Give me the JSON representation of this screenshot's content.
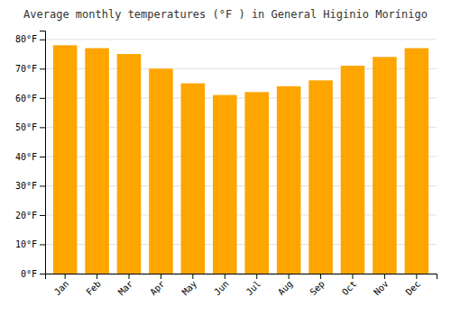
{
  "chart_data": {
    "type": "bar",
    "title": "Average monthly temperatures (°F ) in General Higinio Morínigo",
    "categories": [
      "Jan",
      "Feb",
      "Mar",
      "Apr",
      "May",
      "Jun",
      "Jul",
      "Aug",
      "Sep",
      "Oct",
      "Nov",
      "Dec"
    ],
    "values": [
      78,
      77,
      75,
      70,
      65,
      61,
      62,
      64,
      66,
      71,
      74,
      77
    ],
    "color": "#FFA500",
    "ylim": [
      0,
      83
    ],
    "yticks": [
      {
        "value": 0,
        "label": "0°F"
      },
      {
        "value": 10,
        "label": "10°F"
      },
      {
        "value": 20,
        "label": "20°F"
      },
      {
        "value": 30,
        "label": "30°F"
      },
      {
        "value": 40,
        "label": "40°F"
      },
      {
        "value": 50,
        "label": "50°F"
      },
      {
        "value": 60,
        "label": "60°F"
      },
      {
        "value": 70,
        "label": "70°F"
      },
      {
        "value": 80,
        "label": "80°F"
      }
    ],
    "grid": true
  }
}
